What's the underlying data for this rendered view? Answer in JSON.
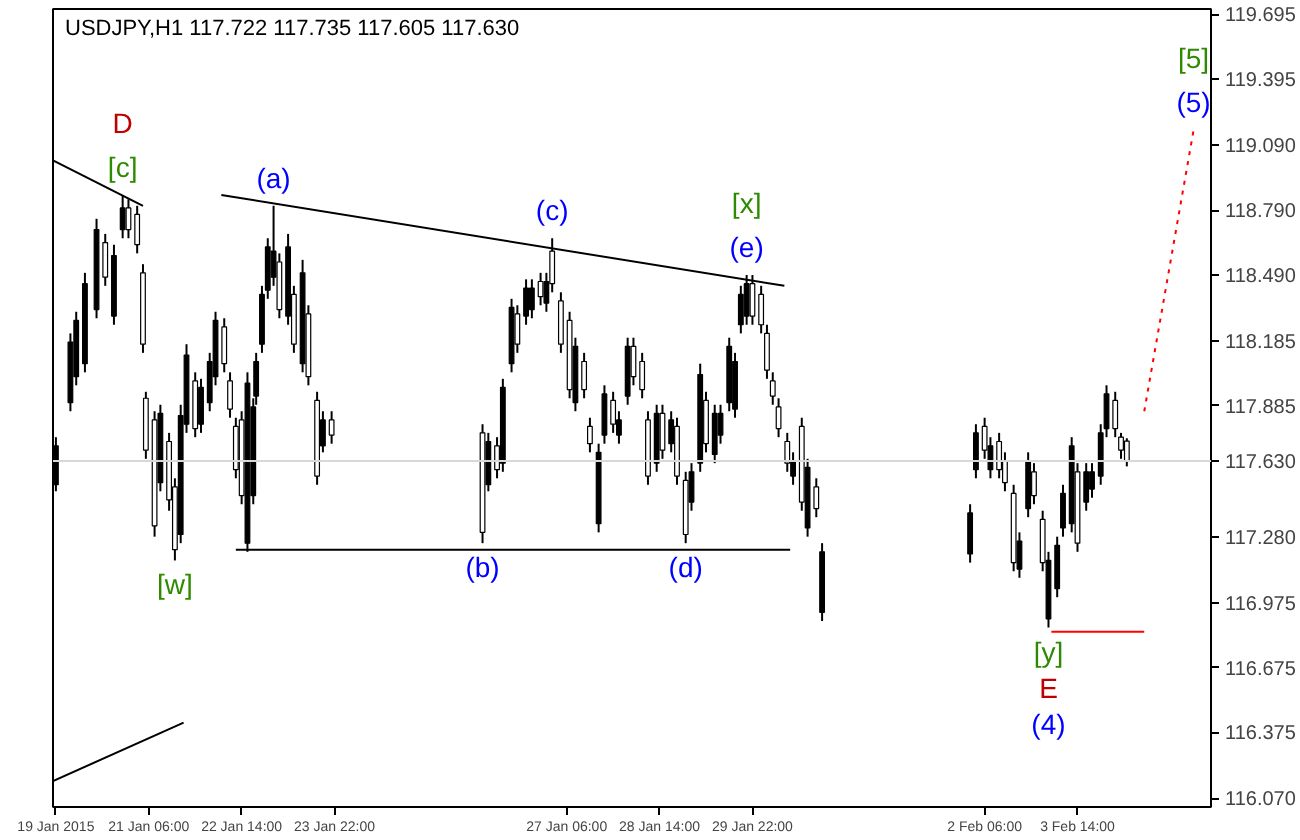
{
  "chart_data": {
    "type": "candlestick",
    "title": "USDJPY,H1  117.722 117.735 117.605 117.630",
    "x": [
      "2015-01-19T22:00",
      "2015-01-20T03:00",
      "2015-01-20T05:00",
      "2015-01-20T08:00",
      "2015-01-20T12:00",
      "2015-01-20T15:00",
      "2015-01-20T18:00",
      "2015-01-20T21:00",
      "2015-01-20T23:00",
      "2015-01-21T02:00",
      "2015-01-21T04:00",
      "2015-01-21T05:00",
      "2015-01-21T08:00",
      "2015-01-21T10:00",
      "2015-01-21T13:00",
      "2015-01-21T15:00",
      "2015-01-21T17:00",
      "2015-01-21T19:00",
      "2015-01-21T22:00",
      "2015-01-22T00:00",
      "2015-01-22T03:00",
      "2015-01-22T05:00",
      "2015-01-22T08:00",
      "2015-01-22T10:00",
      "2015-01-22T12:00",
      "2015-01-22T14:00",
      "2015-01-22T16:00",
      "2015-01-22T18:00",
      "2015-01-22T19:00",
      "2015-01-22T21:00",
      "2015-01-22T23:00",
      "2015-01-23T01:00",
      "2015-01-23T03:00",
      "2015-01-23T06:00",
      "2015-01-23T08:00",
      "2015-01-23T11:00",
      "2015-01-23T13:00",
      "2015-01-23T16:00",
      "2015-01-23T18:00",
      "2015-01-23T21:00",
      "2015-01-26T01:00",
      "2015-01-26T03:00",
      "2015-01-26T06:00",
      "2015-01-26T08:00",
      "2015-01-26T11:00",
      "2015-01-26T13:00",
      "2015-01-26T16:00",
      "2015-01-26T18:00",
      "2015-01-26T21:00",
      "2015-01-26T23:00",
      "2015-01-27T01:00",
      "2015-01-27T04:00",
      "2015-01-27T07:00",
      "2015-01-27T09:00",
      "2015-01-27T12:00",
      "2015-01-27T14:00",
      "2015-01-27T17:00",
      "2015-01-27T19:00",
      "2015-01-27T22:00",
      "2015-01-28T00:00",
      "2015-01-28T03:00",
      "2015-01-28T05:00",
      "2015-01-28T08:00",
      "2015-01-28T10:00",
      "2015-01-28T13:00",
      "2015-01-28T15:00",
      "2015-01-28T18:00",
      "2015-01-28T20:00",
      "2015-01-28T23:00",
      "2015-01-29T01:00",
      "2015-01-29T04:00",
      "2015-01-29T06:00",
      "2015-01-29T09:00",
      "2015-01-29T11:00",
      "2015-01-29T14:00",
      "2015-01-29T16:00",
      "2015-01-29T18:00",
      "2015-01-29T20:00",
      "2015-01-29T22:00",
      "2015-01-30T01:00",
      "2015-01-30T03:00",
      "2015-01-30T05:00",
      "2015-01-30T07:00",
      "2015-01-30T10:00",
      "2015-01-30T12:00",
      "2015-01-30T15:00",
      "2015-01-30T17:00",
      "2015-01-30T20:00",
      "2015-01-30T22:00",
      "2015-02-02T01:00",
      "2015-02-02T03:00",
      "2015-02-02T06:00",
      "2015-02-02T08:00",
      "2015-02-02T11:00",
      "2015-02-02T13:00",
      "2015-02-02T16:00",
      "2015-02-02T18:00",
      "2015-02-02T21:00",
      "2015-02-02T23:00",
      "2015-02-03T02:00",
      "2015-02-03T04:00",
      "2015-02-03T07:00",
      "2015-02-03T09:00",
      "2015-02-03T12:00",
      "2015-02-03T14:00",
      "2015-02-03T17:00",
      "2015-02-03T19:00",
      "2015-02-03T22:00",
      "2015-02-04T00:00",
      "2015-02-04T03:00",
      "2015-02-04T05:00",
      "2015-02-04T07:00"
    ],
    "ohlc": [
      [
        117.52,
        117.74,
        117.49,
        117.7
      ],
      [
        117.9,
        118.22,
        117.86,
        118.18
      ],
      [
        118.02,
        118.32,
        117.98,
        118.28
      ],
      [
        118.08,
        118.5,
        118.04,
        118.45
      ],
      [
        118.33,
        118.75,
        118.29,
        118.7
      ],
      [
        118.64,
        118.68,
        118.44,
        118.48
      ],
      [
        118.3,
        118.63,
        118.26,
        118.58
      ],
      [
        118.7,
        118.86,
        118.66,
        118.8
      ],
      [
        118.8,
        118.84,
        118.66,
        118.7
      ],
      [
        118.77,
        118.81,
        118.59,
        118.63
      ],
      [
        118.5,
        118.54,
        118.13,
        118.17
      ],
      [
        117.92,
        117.95,
        117.64,
        117.68
      ],
      [
        117.82,
        117.86,
        117.28,
        117.33
      ],
      [
        117.53,
        117.89,
        117.49,
        117.85
      ],
      [
        117.72,
        117.76,
        117.4,
        117.45
      ],
      [
        117.51,
        117.55,
        117.17,
        117.22
      ],
      [
        117.29,
        117.89,
        117.25,
        117.84
      ],
      [
        117.8,
        118.17,
        117.76,
        118.12
      ],
      [
        118.0,
        118.04,
        117.74,
        117.78
      ],
      [
        117.8,
        118.01,
        117.76,
        117.97
      ],
      [
        117.9,
        118.13,
        117.86,
        118.09
      ],
      [
        118.02,
        118.32,
        117.98,
        118.28
      ],
      [
        118.25,
        118.29,
        118.04,
        118.08
      ],
      [
        118.0,
        118.04,
        117.83,
        117.87
      ],
      [
        117.79,
        117.83,
        117.55,
        117.59
      ],
      [
        117.82,
        117.86,
        117.43,
        117.47
      ],
      [
        117.25,
        118.04,
        117.21,
        117.99
      ],
      [
        117.47,
        117.92,
        117.43,
        117.88
      ],
      [
        117.93,
        118.13,
        117.89,
        118.09
      ],
      [
        118.17,
        118.44,
        118.13,
        118.4
      ],
      [
        118.42,
        118.66,
        118.38,
        118.62
      ],
      [
        118.48,
        118.81,
        118.44,
        118.6
      ],
      [
        118.55,
        118.59,
        118.29,
        118.33
      ],
      [
        118.3,
        118.68,
        118.26,
        118.62
      ],
      [
        118.4,
        118.44,
        118.13,
        118.17
      ],
      [
        118.08,
        118.56,
        118.04,
        118.5
      ],
      [
        118.31,
        118.35,
        117.98,
        118.02
      ],
      [
        117.91,
        117.95,
        117.52,
        117.56
      ],
      [
        117.7,
        117.86,
        117.67,
        117.82
      ],
      [
        117.82,
        117.86,
        117.71,
        117.75
      ],
      [
        117.76,
        117.8,
        117.25,
        117.3
      ],
      [
        117.52,
        117.76,
        117.49,
        117.72
      ],
      [
        117.7,
        117.74,
        117.55,
        117.59
      ],
      [
        117.62,
        118.01,
        117.58,
        117.97
      ],
      [
        118.08,
        118.38,
        118.04,
        118.34
      ],
      [
        118.31,
        118.35,
        118.13,
        118.17
      ],
      [
        118.3,
        118.47,
        118.26,
        118.43
      ],
      [
        118.33,
        118.47,
        118.29,
        118.43
      ],
      [
        118.46,
        118.5,
        118.35,
        118.39
      ],
      [
        118.36,
        118.5,
        118.32,
        118.46
      ],
      [
        118.6,
        118.66,
        118.41,
        118.45
      ],
      [
        118.37,
        118.41,
        118.13,
        118.17
      ],
      [
        118.28,
        118.32,
        117.92,
        117.96
      ],
      [
        117.9,
        118.2,
        117.86,
        118.16
      ],
      [
        118.09,
        118.13,
        117.92,
        117.96
      ],
      [
        117.79,
        117.83,
        117.67,
        117.71
      ],
      [
        117.34,
        117.71,
        117.3,
        117.67
      ],
      [
        117.75,
        117.98,
        117.71,
        117.94
      ],
      [
        117.91,
        117.95,
        117.76,
        117.8
      ],
      [
        117.75,
        117.86,
        117.71,
        117.82
      ],
      [
        117.93,
        118.2,
        117.89,
        118.16
      ],
      [
        118.16,
        118.2,
        117.98,
        118.02
      ],
      [
        118.09,
        118.13,
        117.92,
        117.96
      ],
      [
        117.82,
        117.86,
        117.52,
        117.56
      ],
      [
        117.62,
        117.89,
        117.58,
        117.85
      ],
      [
        117.85,
        117.89,
        117.64,
        117.68
      ],
      [
        117.71,
        117.86,
        117.67,
        117.82
      ],
      [
        117.79,
        117.83,
        117.52,
        117.56
      ],
      [
        117.54,
        117.58,
        117.25,
        117.29
      ],
      [
        117.44,
        117.62,
        117.4,
        117.58
      ],
      [
        117.62,
        118.08,
        117.58,
        118.03
      ],
      [
        117.91,
        117.95,
        117.67,
        117.71
      ],
      [
        117.66,
        117.89,
        117.62,
        117.85
      ],
      [
        117.75,
        117.89,
        117.71,
        117.85
      ],
      [
        117.9,
        118.2,
        117.86,
        118.16
      ],
      [
        117.87,
        118.13,
        117.83,
        118.09
      ],
      [
        118.26,
        118.44,
        118.22,
        118.4
      ],
      [
        118.3,
        118.49,
        118.26,
        118.45
      ],
      [
        118.45,
        118.49,
        118.26,
        118.3
      ],
      [
        118.4,
        118.44,
        118.22,
        118.26
      ],
      [
        118.22,
        118.26,
        118.01,
        118.05
      ],
      [
        118.0,
        118.04,
        117.89,
        117.93
      ],
      [
        117.88,
        117.92,
        117.74,
        117.78
      ],
      [
        117.72,
        117.76,
        117.58,
        117.62
      ],
      [
        117.56,
        117.67,
        117.52,
        117.63
      ],
      [
        117.79,
        117.83,
        117.4,
        117.44
      ],
      [
        117.32,
        117.64,
        117.28,
        117.6
      ],
      [
        117.51,
        117.55,
        117.37,
        117.41
      ],
      [
        116.93,
        117.25,
        116.89,
        117.21
      ],
      [
        117.2,
        117.43,
        117.16,
        117.39
      ],
      [
        117.59,
        117.8,
        117.55,
        117.76
      ],
      [
        117.79,
        117.83,
        117.64,
        117.68
      ],
      [
        117.59,
        117.74,
        117.55,
        117.7
      ],
      [
        117.72,
        117.76,
        117.55,
        117.59
      ],
      [
        117.63,
        117.67,
        117.49,
        117.53
      ],
      [
        117.48,
        117.52,
        117.12,
        117.16
      ],
      [
        117.13,
        117.3,
        117.09,
        117.26
      ],
      [
        117.41,
        117.67,
        117.37,
        117.63
      ],
      [
        117.58,
        117.62,
        117.43,
        117.47
      ],
      [
        117.36,
        117.4,
        117.12,
        117.16
      ],
      [
        116.9,
        117.21,
        116.86,
        117.17
      ],
      [
        117.04,
        117.28,
        117.0,
        117.24
      ],
      [
        117.32,
        117.52,
        117.28,
        117.48
      ],
      [
        117.34,
        117.74,
        117.3,
        117.7
      ],
      [
        117.58,
        117.62,
        117.21,
        117.25
      ],
      [
        117.44,
        117.62,
        117.4,
        117.58
      ],
      [
        117.5,
        117.62,
        117.46,
        117.58
      ],
      [
        117.56,
        117.8,
        117.52,
        117.76
      ],
      [
        117.78,
        117.98,
        117.74,
        117.94
      ],
      [
        117.91,
        117.95,
        117.74,
        117.78
      ],
      [
        117.74,
        117.76,
        117.64,
        117.68
      ],
      [
        117.722,
        117.735,
        117.605,
        117.63
      ]
    ],
    "color": "#000000",
    "series": [
      {
        "type": "line",
        "x": [
          "2015-01-19T21:00",
          "2015-01-21T04:00"
        ],
        "values": [
          119.02,
          118.81
        ],
        "color": "#000000"
      },
      {
        "type": "line",
        "x": [
          "2015-01-22T07:00",
          "2015-01-30T09:00"
        ],
        "values": [
          118.86,
          118.44
        ],
        "color": "#000000"
      },
      {
        "type": "line",
        "x": [
          "2015-01-22T12:00",
          "2015-01-30T11:00"
        ],
        "values": [
          117.22,
          117.22
        ],
        "color": "#000000"
      },
      {
        "type": "line",
        "x": [
          "2015-01-19T21:00",
          "2015-01-21T18:00"
        ],
        "values": [
          116.15,
          116.42
        ],
        "color": "#000000"
      },
      {
        "type": "line",
        "x": [
          "2015-02-03T05:00",
          "2015-02-04T13:00"
        ],
        "values": [
          116.84,
          116.84
        ],
        "color": "#ff0000"
      },
      {
        "type": "line",
        "x": [
          "2015-02-04T13:00",
          "2015-02-05T06:00"
        ],
        "values": [
          117.86,
          119.16
        ],
        "color": "#ff0000",
        "line_style": "dotted"
      }
    ],
    "annotations": [
      {
        "text": "D",
        "x": "2015-01-20T21:00",
        "y": 118.86
      },
      {
        "text": "[c]",
        "x": "2015-01-20T21:00",
        "y": 118.86
      },
      {
        "text": "(a)",
        "x": "2015-01-23T01:00",
        "y": 118.81
      },
      {
        "text": "(b)",
        "x": "2015-01-26T01:00",
        "y": 117.25
      },
      {
        "text": "(c)",
        "x": "2015-01-27T01:00",
        "y": 118.66
      },
      {
        "text": "(d)",
        "x": "2015-01-28T23:00",
        "y": 117.25
      },
      {
        "text": "[x]",
        "x": "2015-01-29T20:00",
        "y": 118.49
      },
      {
        "text": "(e)",
        "x": "2015-01-29T20:00",
        "y": 118.49
      },
      {
        "text": "[w]",
        "x": "2015-01-21T15:00",
        "y": 117.17
      },
      {
        "text": "[y]",
        "x": "2015-02-03T04:00",
        "y": 116.86
      },
      {
        "text": "E",
        "x": "2015-02-03T04:00",
        "y": 116.86
      },
      {
        "text": "(4)",
        "x": "2015-02-03T04:00",
        "y": 116.86
      },
      {
        "text": "[5]",
        "x": "2015-02-05T06:00",
        "y": 119.16
      },
      {
        "text": "(5)",
        "x": "2015-02-05T06:00",
        "y": 119.16
      }
    ],
    "ref_lines": [
      {
        "axis": "y",
        "value": 117.63,
        "label": "117.630",
        "color": "#d8d8d8"
      }
    ],
    "xlim": [
      "2015-01-19T21:00",
      "2015-02-05T12:00"
    ],
    "xticks": [
      {
        "value": "2015-01-19T22:00",
        "label": "19 Jan 2015"
      },
      {
        "value": "2015-01-21T06:00",
        "label": "21 Jan 06:00"
      },
      {
        "value": "2015-01-22T14:00",
        "label": "22 Jan 14:00"
      },
      {
        "value": "2015-01-23T22:00",
        "label": "23 Jan 22:00"
      },
      {
        "value": "2015-01-27T06:00",
        "label": "27 Jan 06:00"
      },
      {
        "value": "2015-01-28T14:00",
        "label": "28 Jan 14:00"
      },
      {
        "value": "2015-01-29T22:00",
        "label": "29 Jan 22:00"
      },
      {
        "value": "2015-02-02T06:00",
        "label": "2 Feb 06:00"
      },
      {
        "value": "2015-02-03T14:00",
        "label": "3 Feb 14:00"
      }
    ],
    "ylim": [
      116.03,
      119.72
    ],
    "yticks": [
      119.695,
      119.395,
      {
        "value": 119.09,
        "label": "119.090"
      },
      {
        "value": 118.79,
        "label": "118.790"
      },
      {
        "value": 118.49,
        "label": "118.490"
      },
      118.185,
      117.885,
      {
        "value": 117.28,
        "label": "117.280"
      },
      116.975,
      116.675,
      116.375,
      {
        "value": 116.07,
        "label": "116.070"
      }
    ],
    "grid": false
  }
}
